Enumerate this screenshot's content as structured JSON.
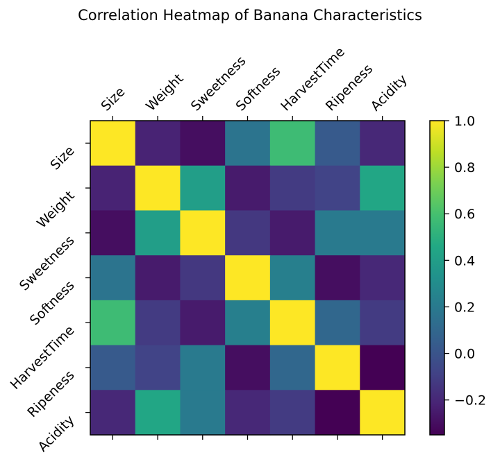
{
  "chart_data": {
    "type": "heatmap",
    "title": "Correlation Heatmap of Banana Characteristics",
    "xlabel": "",
    "ylabel": "",
    "labels": [
      "Size",
      "Weight",
      "Sweetness",
      "Softness",
      "HarvestTime",
      "Ripeness",
      "Acidity"
    ],
    "matrix": [
      [
        1.0,
        -0.22,
        -0.3,
        0.17,
        0.57,
        0.03,
        -0.2
      ],
      [
        -0.22,
        1.0,
        0.4,
        -0.25,
        -0.12,
        -0.08,
        0.45
      ],
      [
        -0.3,
        0.4,
        1.0,
        -0.13,
        -0.25,
        0.2,
        0.2
      ],
      [
        0.17,
        -0.25,
        -0.13,
        1.0,
        0.23,
        -0.3,
        -0.2
      ],
      [
        0.57,
        -0.12,
        -0.25,
        0.23,
        1.0,
        0.1,
        -0.12
      ],
      [
        0.03,
        -0.08,
        0.2,
        -0.3,
        0.1,
        1.0,
        -0.35
      ],
      [
        -0.2,
        0.45,
        0.2,
        -0.2,
        -0.12,
        -0.35,
        1.0
      ]
    ],
    "colorbar": {
      "colormap": "viridis",
      "vmin": -0.35,
      "vmax": 1.0,
      "ticks": [
        1.0,
        0.8,
        0.6,
        0.4,
        0.2,
        0.0,
        -0.2
      ],
      "tick_labels": [
        "1.0",
        "0.8",
        "0.6",
        "0.4",
        "0.2",
        "0.0",
        "−0.2"
      ]
    }
  }
}
